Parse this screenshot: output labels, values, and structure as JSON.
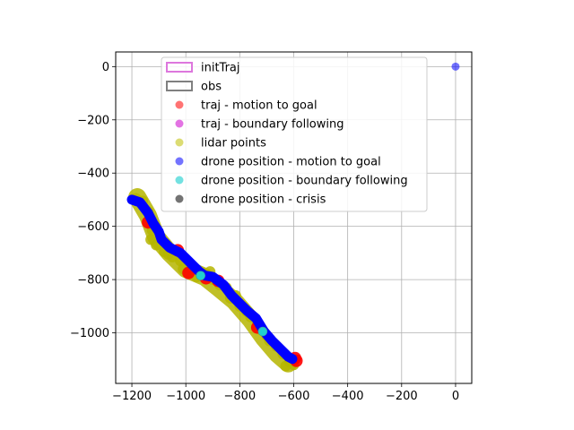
{
  "chart_data": {
    "type": "scatter",
    "title": "",
    "xlabel": "",
    "ylabel": "",
    "xlim": [
      -1260,
      60
    ],
    "ylim": [
      -1190,
      55
    ],
    "xticks": [
      -1200,
      -1000,
      -800,
      -600,
      -400,
      -200,
      0
    ],
    "yticks": [
      0,
      -200,
      -400,
      -600,
      -800,
      -1000
    ],
    "xtick_labels": [
      "−1200",
      "−1000",
      "−800",
      "−600",
      "−400",
      "−200",
      "0"
    ],
    "ytick_labels": [
      "0",
      "−200",
      "−400",
      "−600",
      "−800",
      "−1000"
    ],
    "grid": true,
    "legend_placement": "upper-center",
    "legend": [
      {
        "label": "initTraj",
        "kind": "patch",
        "color": "#dd77dd"
      },
      {
        "label": "obs",
        "kind": "patch",
        "color": "#808080"
      },
      {
        "label": "traj - motion to goal",
        "kind": "marker",
        "color": "#ff0000"
      },
      {
        "label": "traj - boundary following",
        "kind": "marker",
        "color": "#cc00cc"
      },
      {
        "label": "lidar points",
        "kind": "marker",
        "color": "#bfbf00"
      },
      {
        "label": "drone position - motion to goal",
        "kind": "marker",
        "color": "#0000ff"
      },
      {
        "label": "drone position - boundary following",
        "kind": "marker",
        "color": "#00c8c8"
      },
      {
        "label": "drone position - crisis",
        "kind": "marker",
        "color": "#000000"
      }
    ],
    "series": [
      {
        "name": "lidar points",
        "color": "#b5b500",
        "band": [
          [
            -1180,
            -490
          ],
          [
            -1140,
            -560
          ],
          [
            -1110,
            -640
          ],
          [
            -1060,
            -700
          ],
          [
            -1000,
            -760
          ],
          [
            -930,
            -790
          ],
          [
            -880,
            -830
          ],
          [
            -820,
            -880
          ],
          [
            -760,
            -950
          ],
          [
            -710,
            -1020
          ],
          [
            -660,
            -1080
          ],
          [
            -620,
            -1115
          ]
        ],
        "points": [
          [
            -1185,
            -495
          ],
          [
            -1160,
            -505
          ],
          [
            -1140,
            -545
          ],
          [
            -1130,
            -580
          ],
          [
            -1125,
            -615
          ],
          [
            -1130,
            -650
          ],
          [
            -1110,
            -670
          ],
          [
            -1080,
            -695
          ],
          [
            -1065,
            -705
          ],
          [
            -1050,
            -715
          ],
          [
            -1020,
            -730
          ],
          [
            -1010,
            -760
          ],
          [
            -995,
            -775
          ],
          [
            -975,
            -770
          ],
          [
            -960,
            -790
          ],
          [
            -940,
            -775
          ],
          [
            -910,
            -770
          ],
          [
            -900,
            -800
          ],
          [
            -875,
            -820
          ],
          [
            -850,
            -830
          ],
          [
            -835,
            -870
          ],
          [
            -815,
            -860
          ],
          [
            -800,
            -900
          ],
          [
            -775,
            -920
          ],
          [
            -760,
            -940
          ],
          [
            -735,
            -960
          ],
          [
            -720,
            -990
          ],
          [
            -700,
            -1010
          ],
          [
            -690,
            -1030
          ],
          [
            -665,
            -1050
          ],
          [
            -640,
            -1080
          ],
          [
            -615,
            -1110
          ],
          [
            -600,
            -1120
          ],
          [
            -630,
            -1125
          ]
        ]
      },
      {
        "name": "traj - motion to goal",
        "color": "#ff0000",
        "points": [
          [
            -1140,
            -585
          ],
          [
            -1030,
            -690
          ],
          [
            -990,
            -775
          ],
          [
            -925,
            -795
          ],
          [
            -880,
            -805
          ],
          [
            -735,
            -980
          ],
          [
            -595,
            -1095
          ],
          [
            -590,
            -1105
          ]
        ]
      },
      {
        "name": "drone position - motion to goal",
        "color": "#0000ff",
        "path": [
          [
            -1200,
            -500
          ],
          [
            -1170,
            -510
          ],
          [
            -1140,
            -550
          ],
          [
            -1120,
            -590
          ],
          [
            -1100,
            -620
          ],
          [
            -1090,
            -650
          ],
          [
            -1060,
            -680
          ],
          [
            -1020,
            -700
          ],
          [
            -1000,
            -720
          ],
          [
            -980,
            -740
          ],
          [
            -950,
            -770
          ],
          [
            -930,
            -785
          ],
          [
            -900,
            -790
          ],
          [
            -860,
            -820
          ],
          [
            -830,
            -860
          ],
          [
            -800,
            -890
          ],
          [
            -770,
            -920
          ],
          [
            -740,
            -945
          ],
          [
            -710,
            -995
          ],
          [
            -680,
            -1030
          ],
          [
            -650,
            -1060
          ],
          [
            -620,
            -1090
          ],
          [
            -605,
            -1098
          ]
        ],
        "points": [
          [
            0,
            0
          ]
        ]
      },
      {
        "name": "drone position - boundary following",
        "color": "#20d0d0",
        "points": [
          [
            -945,
            -785
          ],
          [
            -715,
            -995
          ]
        ]
      }
    ]
  }
}
